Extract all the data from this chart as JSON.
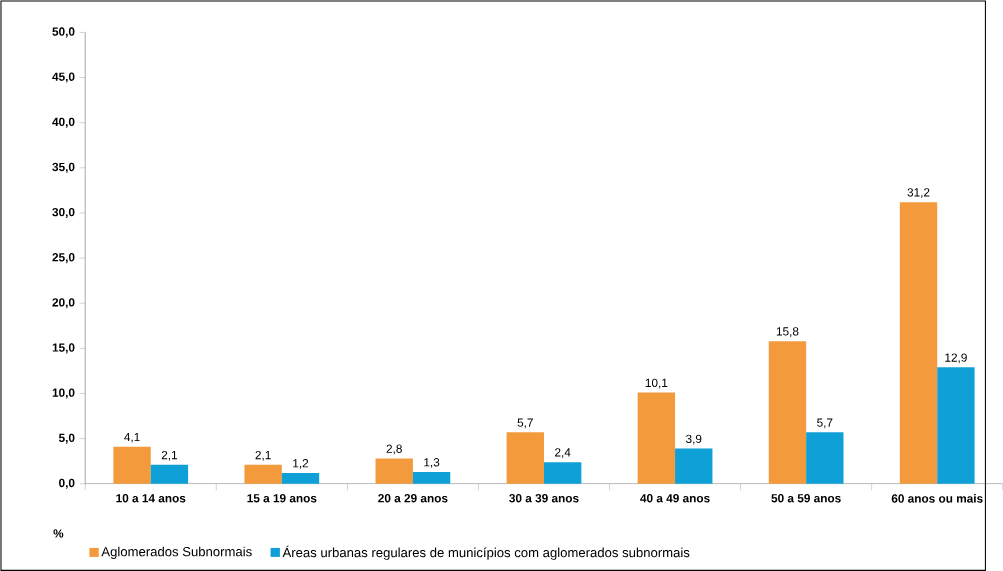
{
  "chart_data": {
    "type": "bar",
    "ylabel": "%",
    "categories": [
      "10 a 14 anos",
      "15 a 19 anos",
      "20 a 29 anos",
      "30 a 39 anos",
      "40 a 49 anos",
      "50 a 59 anos",
      "60 anos ou mais"
    ],
    "series": [
      {
        "name": "Aglomerados Subnormais",
        "color": "#f39a3c",
        "values": [
          4.1,
          2.1,
          2.8,
          5.7,
          10.1,
          15.8,
          31.2
        ],
        "value_labels": [
          "4,1",
          "2,1",
          "2,8",
          "5,7",
          "10,1",
          "15,8",
          "31,2"
        ]
      },
      {
        "name": "Áreas urbanas regulares de municípios com aglomerados subnormais",
        "color": "#0fa0d8",
        "values": [
          2.1,
          1.2,
          1.3,
          2.4,
          3.9,
          5.7,
          12.9
        ],
        "value_labels": [
          "2,1",
          "1,2",
          "1,3",
          "2,4",
          "3,9",
          "5,7",
          "12,9"
        ]
      }
    ],
    "ylim": [
      0,
      50
    ],
    "yticks": [
      {
        "value": 0,
        "label": "0,0"
      },
      {
        "value": 5,
        "label": "5,0"
      },
      {
        "value": 10,
        "label": "10,0"
      },
      {
        "value": 15,
        "label": "15,0"
      },
      {
        "value": 20,
        "label": "20,0"
      },
      {
        "value": 25,
        "label": "25,0"
      },
      {
        "value": 30,
        "label": "30,0"
      },
      {
        "value": 35,
        "label": "35,0"
      },
      {
        "value": 40,
        "label": "40,0"
      },
      {
        "value": 45,
        "label": "45,0"
      },
      {
        "value": 50,
        "label": "50,0"
      }
    ],
    "grid": false,
    "legend": "bottom left"
  }
}
